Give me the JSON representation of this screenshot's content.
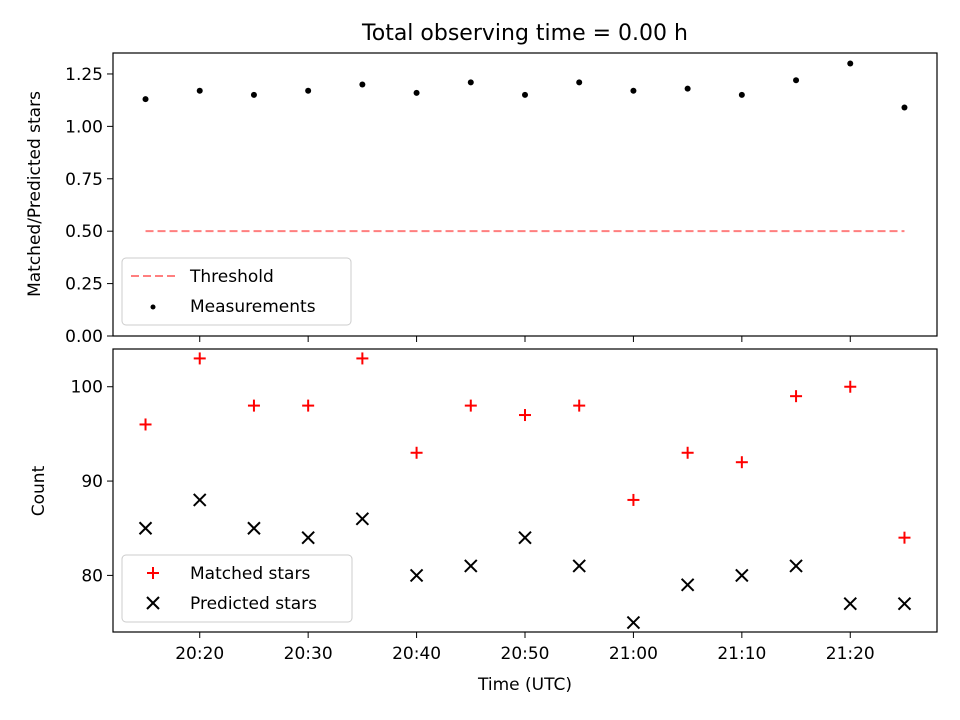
{
  "chart_data": [
    {
      "type": "scatter",
      "title": "Total observing time = 0.00 h",
      "ylabel": "Matched/Predicted stars",
      "ylim": [
        0,
        1.35
      ],
      "yticks": [
        "0.00",
        "0.25",
        "0.50",
        "0.75",
        "1.00",
        "1.25"
      ],
      "legend_position": "lower-left",
      "threshold": {
        "name": "Threshold",
        "y": 0.5,
        "color": "#ff7f7f",
        "style": "dashed"
      },
      "series": [
        {
          "name": "Measurements",
          "color": "#000000",
          "marker": "dot",
          "points": [
            {
              "x": "20:15",
              "y": 1.13
            },
            {
              "x": "20:20",
              "y": 1.17
            },
            {
              "x": "20:25",
              "y": 1.15
            },
            {
              "x": "20:30",
              "y": 1.17
            },
            {
              "x": "20:35",
              "y": 1.2
            },
            {
              "x": "20:40",
              "y": 1.16
            },
            {
              "x": "20:45",
              "y": 1.21
            },
            {
              "x": "20:50",
              "y": 1.15
            },
            {
              "x": "20:55",
              "y": 1.21
            },
            {
              "x": "21:00",
              "y": 1.17
            },
            {
              "x": "21:05",
              "y": 1.18
            },
            {
              "x": "21:10",
              "y": 1.15
            },
            {
              "x": "21:15",
              "y": 1.22
            },
            {
              "x": "21:20",
              "y": 1.3
            },
            {
              "x": "21:25",
              "y": 1.09
            }
          ]
        }
      ]
    },
    {
      "type": "scatter",
      "xlabel": "Time (UTC)",
      "ylabel": "Count",
      "ylim": [
        74,
        104
      ],
      "yticks": [
        "80",
        "90",
        "100"
      ],
      "xticks": [
        "20:20",
        "20:30",
        "20:40",
        "20:50",
        "21:00",
        "21:10",
        "21:20"
      ],
      "xlim": [
        "20:12",
        "21:28"
      ],
      "legend_position": "lower-left",
      "series": [
        {
          "name": "Matched stars",
          "color": "#ff0000",
          "marker": "plus",
          "points": [
            {
              "x": "20:15",
              "y": 96
            },
            {
              "x": "20:20",
              "y": 103
            },
            {
              "x": "20:25",
              "y": 98
            },
            {
              "x": "20:30",
              "y": 98
            },
            {
              "x": "20:35",
              "y": 103
            },
            {
              "x": "20:40",
              "y": 93
            },
            {
              "x": "20:45",
              "y": 98
            },
            {
              "x": "20:50",
              "y": 97
            },
            {
              "x": "20:55",
              "y": 98
            },
            {
              "x": "21:00",
              "y": 88
            },
            {
              "x": "21:05",
              "y": 93
            },
            {
              "x": "21:10",
              "y": 92
            },
            {
              "x": "21:15",
              "y": 99
            },
            {
              "x": "21:20",
              "y": 100
            },
            {
              "x": "21:25",
              "y": 84
            }
          ]
        },
        {
          "name": "Predicted stars",
          "color": "#000000",
          "marker": "x",
          "points": [
            {
              "x": "20:15",
              "y": 85
            },
            {
              "x": "20:20",
              "y": 88
            },
            {
              "x": "20:25",
              "y": 85
            },
            {
              "x": "20:30",
              "y": 84
            },
            {
              "x": "20:35",
              "y": 86
            },
            {
              "x": "20:40",
              "y": 80
            },
            {
              "x": "20:45",
              "y": 81
            },
            {
              "x": "20:50",
              "y": 84
            },
            {
              "x": "20:55",
              "y": 81
            },
            {
              "x": "21:00",
              "y": 75
            },
            {
              "x": "21:05",
              "y": 79
            },
            {
              "x": "21:10",
              "y": 80
            },
            {
              "x": "21:15",
              "y": 81
            },
            {
              "x": "21:20",
              "y": 77
            },
            {
              "x": "21:25",
              "y": 77
            }
          ]
        }
      ]
    }
  ]
}
